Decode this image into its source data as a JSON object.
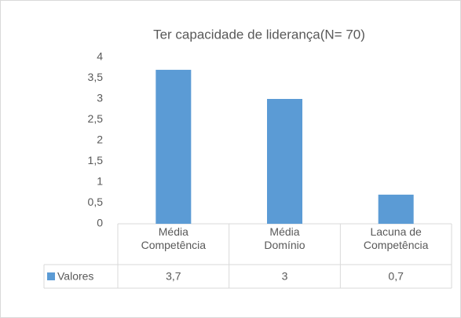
{
  "chart_data": {
    "type": "bar",
    "title": "Ter capacidade de liderança(N= 70)",
    "categories": [
      "Média Competência",
      "Média Domínio",
      "Lacuna de Competência"
    ],
    "series": [
      {
        "name": "Valores",
        "color": "#5b9bd5",
        "values": [
          3.7,
          3,
          0.7
        ],
        "value_labels": [
          "3,7",
          "3",
          "0,7"
        ]
      }
    ],
    "ylim": [
      0,
      4
    ],
    "yticks": [
      0,
      {
        "value": 0.5,
        "label": "0,5"
      },
      1,
      {
        "value": 1.5,
        "label": "1,5"
      },
      2,
      {
        "value": 2.5,
        "label": "2,5"
      },
      3,
      {
        "value": 3.5,
        "label": "3,5"
      },
      4
    ],
    "grid": false
  }
}
